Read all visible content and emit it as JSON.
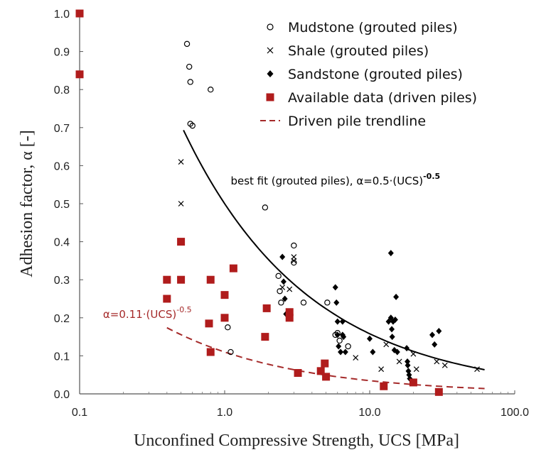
{
  "chart_data": {
    "type": "scatter",
    "xlabel": "Unconfined Compressive Strength, UCS [MPa]",
    "ylabel": "Adhesion factor, α [-]",
    "xscale": "log",
    "xlim": [
      0.1,
      100
    ],
    "ylim": [
      0,
      1
    ],
    "xticks": [
      "0.1",
      "1.0",
      "10.0",
      "100.0"
    ],
    "yticks": [
      "0.0",
      "0.1",
      "0.2",
      "0.3",
      "0.4",
      "0.5",
      "0.6",
      "0.7",
      "0.8",
      "0.9",
      "1.0"
    ],
    "grid": false,
    "legend_position": "top-right",
    "series": [
      {
        "name": "Mudstone (grouted piles)",
        "marker": "open-circle",
        "color": "#000000",
        "points": [
          [
            0.55,
            0.92
          ],
          [
            0.57,
            0.86
          ],
          [
            0.58,
            0.82
          ],
          [
            0.58,
            0.71
          ],
          [
            0.6,
            0.705
          ],
          [
            0.8,
            0.8
          ],
          [
            1.05,
            0.175
          ],
          [
            1.1,
            0.11
          ],
          [
            1.9,
            0.49
          ],
          [
            2.35,
            0.31
          ],
          [
            2.4,
            0.27
          ],
          [
            2.45,
            0.24
          ],
          [
            3.0,
            0.39
          ],
          [
            3.0,
            0.345
          ],
          [
            3.5,
            0.24
          ],
          [
            5.1,
            0.24
          ],
          [
            5.8,
            0.155
          ],
          [
            6.0,
            0.16
          ],
          [
            6.2,
            0.14
          ],
          [
            7.1,
            0.125
          ]
        ]
      },
      {
        "name": "Shale (grouted piles)",
        "marker": "cross",
        "color": "#000000",
        "points": [
          [
            0.5,
            0.61
          ],
          [
            0.5,
            0.5
          ],
          [
            2.5,
            0.28
          ],
          [
            2.8,
            0.275
          ],
          [
            3.0,
            0.36
          ],
          [
            3.0,
            0.35
          ],
          [
            8.0,
            0.095
          ],
          [
            12.0,
            0.065
          ],
          [
            13.0,
            0.13
          ],
          [
            16.0,
            0.085
          ],
          [
            20.0,
            0.105
          ],
          [
            21.0,
            0.065
          ],
          [
            29.0,
            0.085
          ],
          [
            33.0,
            0.075
          ],
          [
            55.0,
            0.065
          ]
        ]
      },
      {
        "name": "Sandstone (grouted piles)",
        "marker": "diamond",
        "color": "#000000",
        "points": [
          [
            2.5,
            0.36
          ],
          [
            2.55,
            0.295
          ],
          [
            2.6,
            0.25
          ],
          [
            2.65,
            0.21
          ],
          [
            5.8,
            0.28
          ],
          [
            5.9,
            0.24
          ],
          [
            6.0,
            0.19
          ],
          [
            6.0,
            0.155
          ],
          [
            6.1,
            0.125
          ],
          [
            6.3,
            0.11
          ],
          [
            6.5,
            0.19
          ],
          [
            6.5,
            0.155
          ],
          [
            6.6,
            0.15
          ],
          [
            6.8,
            0.11
          ],
          [
            10.0,
            0.145
          ],
          [
            10.5,
            0.11
          ],
          [
            13.5,
            0.19
          ],
          [
            14.0,
            0.37
          ],
          [
            14.0,
            0.2
          ],
          [
            14.2,
            0.17
          ],
          [
            14.3,
            0.15
          ],
          [
            14.5,
            0.19
          ],
          [
            14.8,
            0.115
          ],
          [
            15.0,
            0.195
          ],
          [
            15.2,
            0.255
          ],
          [
            15.5,
            0.11
          ],
          [
            18.0,
            0.12
          ],
          [
            18.2,
            0.085
          ],
          [
            18.3,
            0.075
          ],
          [
            18.5,
            0.06
          ],
          [
            18.7,
            0.05
          ],
          [
            18.9,
            0.04
          ],
          [
            27.0,
            0.155
          ],
          [
            28.0,
            0.13
          ],
          [
            30.0,
            0.165
          ]
        ]
      },
      {
        "name": "Available data (driven piles)",
        "marker": "filled-square",
        "color": "#b01c1c",
        "points": [
          [
            0.1,
            1.0
          ],
          [
            0.1,
            0.84
          ],
          [
            0.4,
            0.3
          ],
          [
            0.4,
            0.25
          ],
          [
            0.5,
            0.4
          ],
          [
            0.5,
            0.3
          ],
          [
            0.78,
            0.185
          ],
          [
            0.8,
            0.11
          ],
          [
            0.8,
            0.3
          ],
          [
            1.0,
            0.26
          ],
          [
            1.0,
            0.2
          ],
          [
            1.15,
            0.33
          ],
          [
            1.9,
            0.15
          ],
          [
            1.95,
            0.225
          ],
          [
            2.8,
            0.215
          ],
          [
            2.8,
            0.2
          ],
          [
            3.2,
            0.055
          ],
          [
            4.6,
            0.06
          ],
          [
            4.9,
            0.08
          ],
          [
            5.0,
            0.045
          ],
          [
            12.5,
            0.02
          ],
          [
            20.0,
            0.03
          ],
          [
            30.0,
            0.005
          ]
        ]
      },
      {
        "name": "Driven pile trendline",
        "style": "dashed-line",
        "color": "#a52a2a",
        "equation": "α = 0.11·UCS^-0.5",
        "x_range": [
          0.4,
          62
        ]
      }
    ],
    "best_fit": {
      "name": "best fit (grouted piles)",
      "equation": "α = 0.5·UCS^-0.5",
      "x_range": [
        0.52,
        62
      ],
      "color": "#000000"
    },
    "annotations": [
      {
        "id": "grouted",
        "text": "best fit (grouted piles), α=0.5·(UCS)",
        "superscript": "-0.5",
        "color": "#000000",
        "x": 1.1,
        "y": 0.55
      },
      {
        "id": "driven",
        "text": "α=0.11·(UCS)",
        "superscript": "-0.5",
        "color": "#a52a2a",
        "x": 0.145,
        "y": 0.2
      }
    ]
  }
}
